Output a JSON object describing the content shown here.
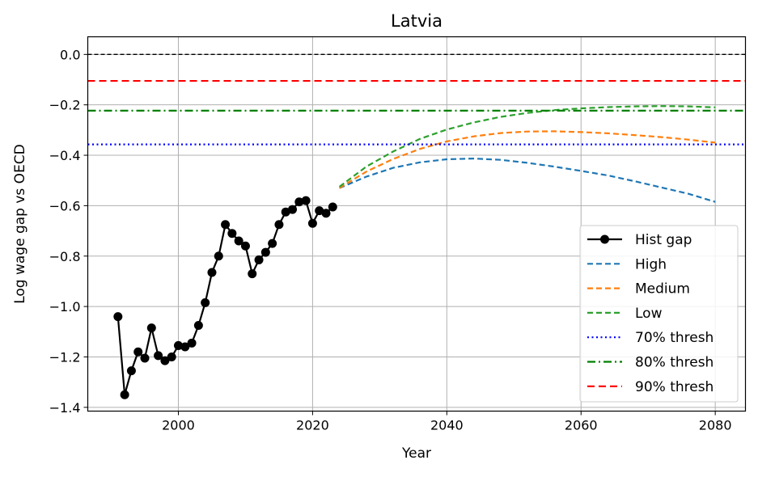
{
  "chart_data": {
    "type": "line",
    "title": "Latvia",
    "xlabel": "Year",
    "ylabel": "Log wage gap vs OECD",
    "xlim": [
      1986.5,
      2084.5
    ],
    "ylim": [
      -1.415,
      0.07
    ],
    "xticks": [
      2000,
      2020,
      2040,
      2060,
      2080
    ],
    "yticks": [
      0.0,
      -0.2,
      -0.4,
      -0.6,
      -0.8,
      -1.0,
      -1.2,
      -1.4
    ],
    "xtick_labels": [
      "2000",
      "2020",
      "2040",
      "2060",
      "2080"
    ],
    "ytick_labels": [
      "0.0",
      "−0.2",
      "−0.4",
      "−0.6",
      "−0.8",
      "−1.0",
      "−1.2",
      "−1.4"
    ],
    "grid": true,
    "legend_position": "bottom-right",
    "zero_line": {
      "y": 0.0,
      "color": "#000000"
    },
    "series": [
      {
        "name": "Hist gap",
        "style": "solid-marker",
        "color": "#000000",
        "x": [
          1991,
          1992,
          1993,
          1994,
          1995,
          1996,
          1997,
          1998,
          1999,
          2000,
          2001,
          2002,
          2003,
          2004,
          2005,
          2006,
          2007,
          2008,
          2009,
          2010,
          2011,
          2012,
          2013,
          2014,
          2015,
          2016,
          2017,
          2018,
          2019,
          2020,
          2021,
          2022,
          2023
        ],
        "y": [
          -1.04,
          -1.35,
          -1.255,
          -1.18,
          -1.205,
          -1.085,
          -1.195,
          -1.215,
          -1.2,
          -1.155,
          -1.16,
          -1.145,
          -1.075,
          -0.985,
          -0.865,
          -0.8,
          -0.675,
          -0.71,
          -0.74,
          -0.76,
          -0.87,
          -0.815,
          -0.785,
          -0.75,
          -0.675,
          -0.625,
          -0.615,
          -0.585,
          -0.58,
          -0.67,
          -0.62,
          -0.63,
          -0.605
        ]
      },
      {
        "name": "High",
        "style": "dashed",
        "color": "#1f77b4",
        "x": [
          2024,
          2028,
          2032,
          2036,
          2040,
          2044,
          2048,
          2052,
          2056,
          2060,
          2064,
          2068,
          2072,
          2076,
          2080
        ],
        "y": [
          -0.53,
          -0.485,
          -0.45,
          -0.428,
          -0.416,
          -0.413,
          -0.418,
          -0.43,
          -0.445,
          -0.462,
          -0.48,
          -0.503,
          -0.528,
          -0.553,
          -0.585
        ]
      },
      {
        "name": "Medium",
        "style": "dashed",
        "color": "#ff7f0e",
        "x": [
          2024,
          2028,
          2032,
          2036,
          2040,
          2044,
          2048,
          2052,
          2056,
          2060,
          2064,
          2068,
          2072,
          2076,
          2080
        ],
        "y": [
          -0.53,
          -0.465,
          -0.415,
          -0.375,
          -0.345,
          -0.325,
          -0.312,
          -0.306,
          -0.305,
          -0.308,
          -0.313,
          -0.32,
          -0.328,
          -0.338,
          -0.35
        ]
      },
      {
        "name": "Low",
        "style": "dashed",
        "color": "#2ca02c",
        "x": [
          2024,
          2028,
          2032,
          2036,
          2040,
          2044,
          2048,
          2052,
          2056,
          2060,
          2064,
          2068,
          2072,
          2076,
          2080
        ],
        "y": [
          -0.525,
          -0.445,
          -0.385,
          -0.335,
          -0.298,
          -0.27,
          -0.248,
          -0.232,
          -0.221,
          -0.214,
          -0.209,
          -0.206,
          -0.205,
          -0.206,
          -0.21
        ]
      },
      {
        "name": "70% thresh",
        "style": "dotted-h",
        "color": "#0000ff",
        "y": -0.357
      },
      {
        "name": "80% thresh",
        "style": "dashdot-h",
        "color": "#008000",
        "y": -0.223
      },
      {
        "name": "90% thresh",
        "style": "dashed-h",
        "color": "#ff0000",
        "y": -0.105
      }
    ]
  }
}
